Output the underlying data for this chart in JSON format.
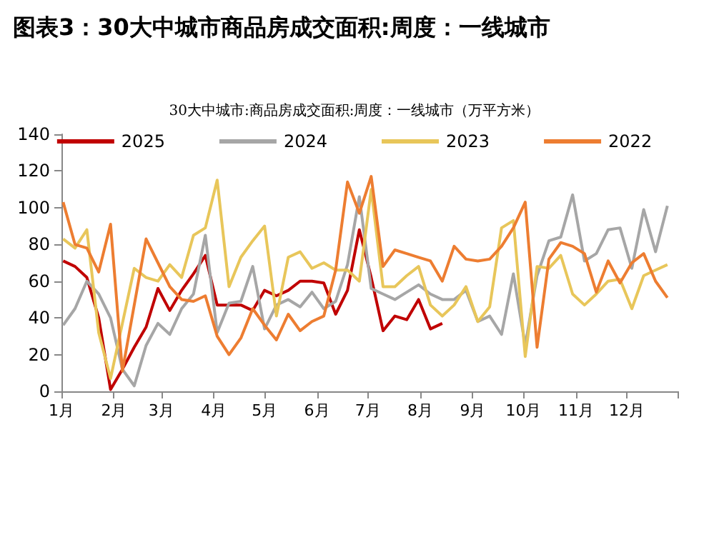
{
  "chart_data": {
    "type": "line",
    "title": "图表3：30大中城市商品房成交面积:周度：一线城市",
    "subtitle": "30大中城市:商品房成交面积:周度：一线城市（万平方米）",
    "x": [
      "--01-02",
      "--01-09",
      "--01-16",
      "--01-23",
      "--01-30",
      "--02-06",
      "--02-13",
      "--02-20",
      "--02-27",
      "--03-06",
      "--03-13",
      "--03-20",
      "--03-27",
      "--04-03",
      "--04-10",
      "--04-17",
      "--04-24",
      "--05-01",
      "--05-08",
      "--05-15",
      "--05-22",
      "--05-29",
      "--06-05",
      "--06-12",
      "--06-19",
      "--06-26",
      "--07-03",
      "--07-10",
      "--07-17",
      "--07-24",
      "--07-31",
      "--08-07",
      "--08-14",
      "--08-21",
      "--08-28",
      "--09-04",
      "--09-11",
      "--09-18",
      "--09-25",
      "--10-02",
      "--10-09",
      "--10-16",
      "--10-23",
      "--10-30",
      "--11-06",
      "--11-13",
      "--11-20",
      "--11-27",
      "--12-04",
      "--12-11",
      "--12-18",
      "--12-25"
    ],
    "series": [
      {
        "name": "2025",
        "color": "#c00000",
        "values": [
          71,
          68,
          62,
          40,
          1,
          12,
          24,
          35,
          56,
          44,
          55,
          64,
          74,
          47,
          47,
          47,
          44,
          55,
          52,
          55,
          60,
          60,
          59,
          42,
          55,
          88,
          62,
          33,
          41,
          39,
          50,
          34,
          37,
          null,
          null,
          null,
          null,
          null,
          null,
          null,
          null,
          null,
          null,
          null,
          null,
          null,
          null,
          null,
          null,
          null,
          null,
          null
        ]
      },
      {
        "name": "2024",
        "color": "#a6a6a6",
        "values": [
          36,
          45,
          60,
          53,
          40,
          12,
          3,
          25,
          37,
          31,
          45,
          53,
          85,
          32,
          48,
          49,
          68,
          34,
          47,
          50,
          46,
          54,
          45,
          49,
          69,
          106,
          56,
          53,
          50,
          54,
          58,
          53,
          50,
          50,
          55,
          38,
          41,
          31,
          64,
          25,
          63,
          82,
          84,
          107,
          71,
          75,
          88,
          89,
          67,
          99,
          76,
          101
        ]
      },
      {
        "name": "2023",
        "color": "#e8c65a",
        "values": [
          83,
          78,
          88,
          32,
          7,
          37,
          67,
          62,
          60,
          69,
          62,
          85,
          89,
          115,
          57,
          73,
          82,
          90,
          41,
          73,
          76,
          67,
          70,
          66,
          66,
          60,
          110,
          57,
          57,
          63,
          68,
          47,
          41,
          47,
          57,
          38,
          46,
          89,
          93,
          19,
          68,
          67,
          74,
          53,
          47,
          53,
          60,
          61,
          45,
          63,
          66,
          69
        ]
      },
      {
        "name": "2022",
        "color": "#ed7d31",
        "values": [
          103,
          80,
          78,
          65,
          91,
          11,
          47,
          83,
          70,
          57,
          50,
          49,
          52,
          30,
          20,
          29,
          45,
          36,
          28,
          42,
          33,
          38,
          41,
          66,
          114,
          97,
          117,
          68,
          77,
          75,
          73,
          71,
          60,
          79,
          72,
          71,
          72,
          79,
          89,
          103,
          24,
          72,
          81,
          79,
          75,
          54,
          71,
          59,
          70,
          75,
          60,
          51
        ]
      }
    ],
    "xlim": [
      "--01-01",
      "--12-31"
    ],
    "xticks": [
      {
        "value": "--01-01",
        "label": "1月"
      },
      {
        "value": "--02-01",
        "label": "2月"
      },
      {
        "value": "--03-01",
        "label": "3月"
      },
      {
        "value": "--04-01",
        "label": "4月"
      },
      {
        "value": "--05-01",
        "label": "5月"
      },
      {
        "value": "--06-01",
        "label": "6月"
      },
      {
        "value": "--07-01",
        "label": "7月"
      },
      {
        "value": "--08-01",
        "label": "8月"
      },
      {
        "value": "--09-01",
        "label": "9月"
      },
      {
        "value": "--10-01",
        "label": "10月"
      },
      {
        "value": "--11-01",
        "label": "11月"
      },
      {
        "value": "--12-01",
        "label": "12月"
      },
      {
        "value": "--12-31",
        "label": null
      }
    ],
    "ylim": [
      0,
      140
    ],
    "yticks": [
      0,
      20,
      40,
      60,
      80,
      100,
      120,
      140
    ],
    "grid": false,
    "legend": "top",
    "marker": "none"
  }
}
